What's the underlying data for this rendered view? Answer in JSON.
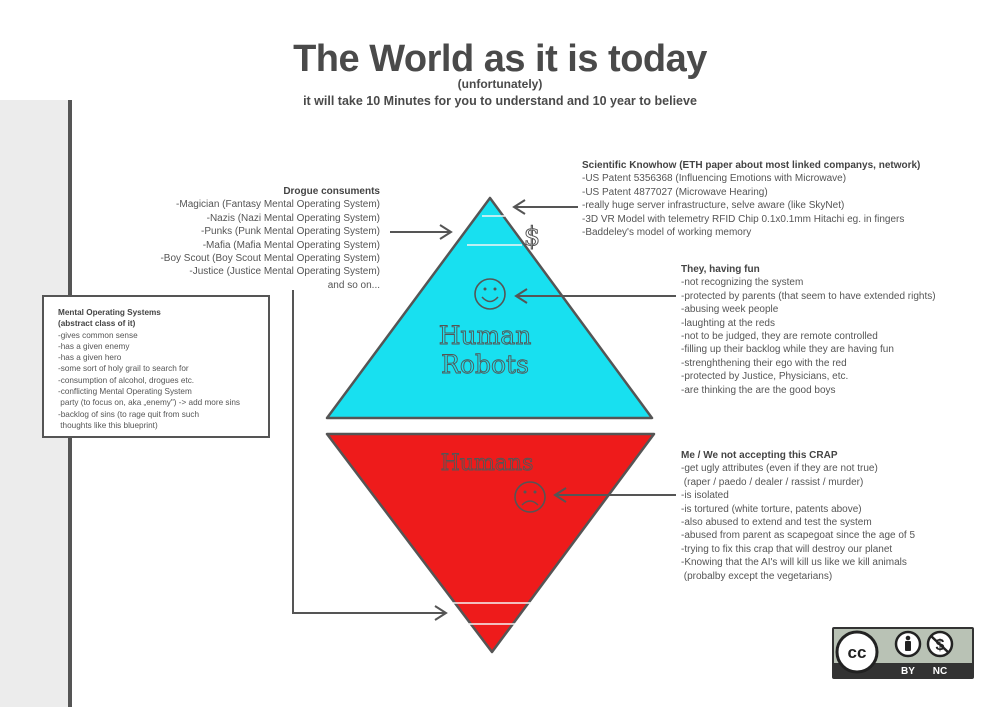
{
  "header": {
    "title": "The World as it is today",
    "subtitle": "(unfortunately)",
    "tagline": "it will take 10 Minutes for you to understand and 10 year to believe"
  },
  "triangles": {
    "top_label_line1": "Human",
    "top_label_line2": "Robots",
    "bottom_label": "Humans",
    "dollar_sign": "$",
    "top_color": "#18e0f0",
    "bottom_color": "#ee1b1b"
  },
  "drogue": {
    "heading": "Drogue consuments",
    "items": [
      "-Magician (Fantasy Mental Operating System)",
      "-Nazis (Nazi Mental Operating System)",
      "-Punks (Punk Mental Operating System)",
      "-Mafia (Mafia Mental Operating System)",
      "-Boy Scout (Boy Scout Mental Operating System)",
      "-Justice (Justice Mental Operating System)",
      "and so on..."
    ]
  },
  "mos": {
    "heading1": "Mental Operating Systems",
    "heading2": "(abstract class of it)",
    "items": [
      "-gives common sense",
      "-has a given enemy",
      "-has a given hero",
      "-some sort of holy grail to search for",
      "-consumption of alcohol, drogues etc.",
      "-conflicting Mental Operating System",
      " party (to focus on, aka „enemy\") -> add more sins",
      "-backlog of sins (to rage quit from such",
      " thoughts like this blueprint)"
    ]
  },
  "scientific": {
    "heading": "Scientific Knowhow (ETH paper about most linked companys, network)",
    "items": [
      "-US Patent 5356368 (Influencing Emotions with Microwave)",
      "-US Patent 4877027 (Microwave Hearing)",
      "-really huge server infrastructure, selve aware (like SkyNet)",
      "-3D VR Model with telemetry RFID Chip 0.1x0.1mm Hitachi eg. in fingers",
      "-Baddeley's model of working memory"
    ]
  },
  "fun": {
    "heading": "They, having fun",
    "items": [
      "-not recognizing the system",
      "-protected by parents (that seem to have extended rights)",
      "-abusing week people",
      "-laughting at the reds",
      "-not to be judged, they are remote controlled",
      "-filling up their backlog while they are having fun",
      "-strenghthening their ego with the red",
      "-protected by Justice, Physicians, etc.",
      "-are thinking the are the good boys"
    ]
  },
  "crap": {
    "heading": "Me / We not accepting this CRAP",
    "items": [
      "-get ugly attributes (even if they are not true)",
      " (raper / paedo / dealer / rassist / murder)",
      "-is isolated",
      "-is tortured (white torture, patents above)",
      "-also abused to extend and test the system",
      "-abused from parent as scapegoat since the age of 5",
      "-trying to fix this crap that will destroy our planet",
      "-Knowing that the AI's will kill us like we kill animals",
      " (probalby except the vegetarians)"
    ]
  },
  "license": {
    "cc": "cc",
    "by": "BY",
    "nc": "NC"
  }
}
